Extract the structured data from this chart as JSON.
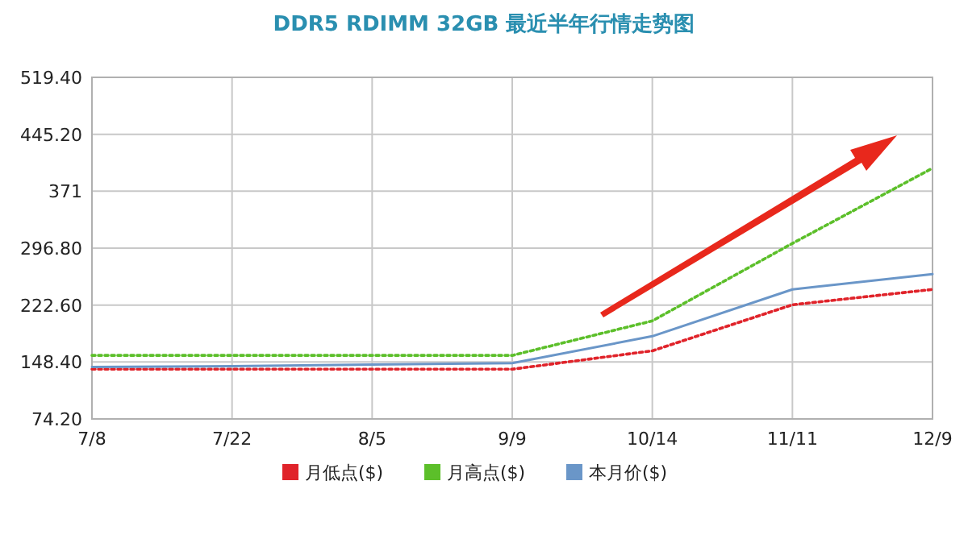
{
  "chart_data": {
    "type": "line",
    "title": "DDR5 RDIMM 32GB 最近半年行情走势图",
    "categories": [
      "7/8",
      "7/22",
      "8/5",
      "9/9",
      "10/14",
      "11/11",
      "12/9"
    ],
    "series": [
      {
        "name": "月低点($)",
        "color": "#e0232a",
        "line_style": "dotted",
        "values": [
          139,
          139,
          139,
          139,
          163,
          223,
          243
        ]
      },
      {
        "name": "月高点($)",
        "color": "#5cbf2a",
        "line_style": "dotted",
        "values": [
          157,
          157,
          157,
          157,
          202,
          303,
          401
        ]
      },
      {
        "name": "本月价($)",
        "color": "#6a96c8",
        "line_style": "solid",
        "values": [
          142,
          143,
          145,
          147,
          182,
          243,
          263
        ]
      }
    ],
    "ylim": [
      74.2,
      519.4
    ],
    "yticks": [
      {
        "value": 74.2,
        "label": "74.20"
      },
      {
        "value": 148.4,
        "label": "148.40"
      },
      {
        "value": 222.6,
        "label": "222.60"
      },
      {
        "value": 296.8,
        "label": "296.80"
      },
      371,
      {
        "value": 445.2,
        "label": "445.20"
      },
      {
        "value": 519.4,
        "label": "519.40"
      }
    ],
    "grid": true,
    "legend": "bottom",
    "marker": "none"
  }
}
